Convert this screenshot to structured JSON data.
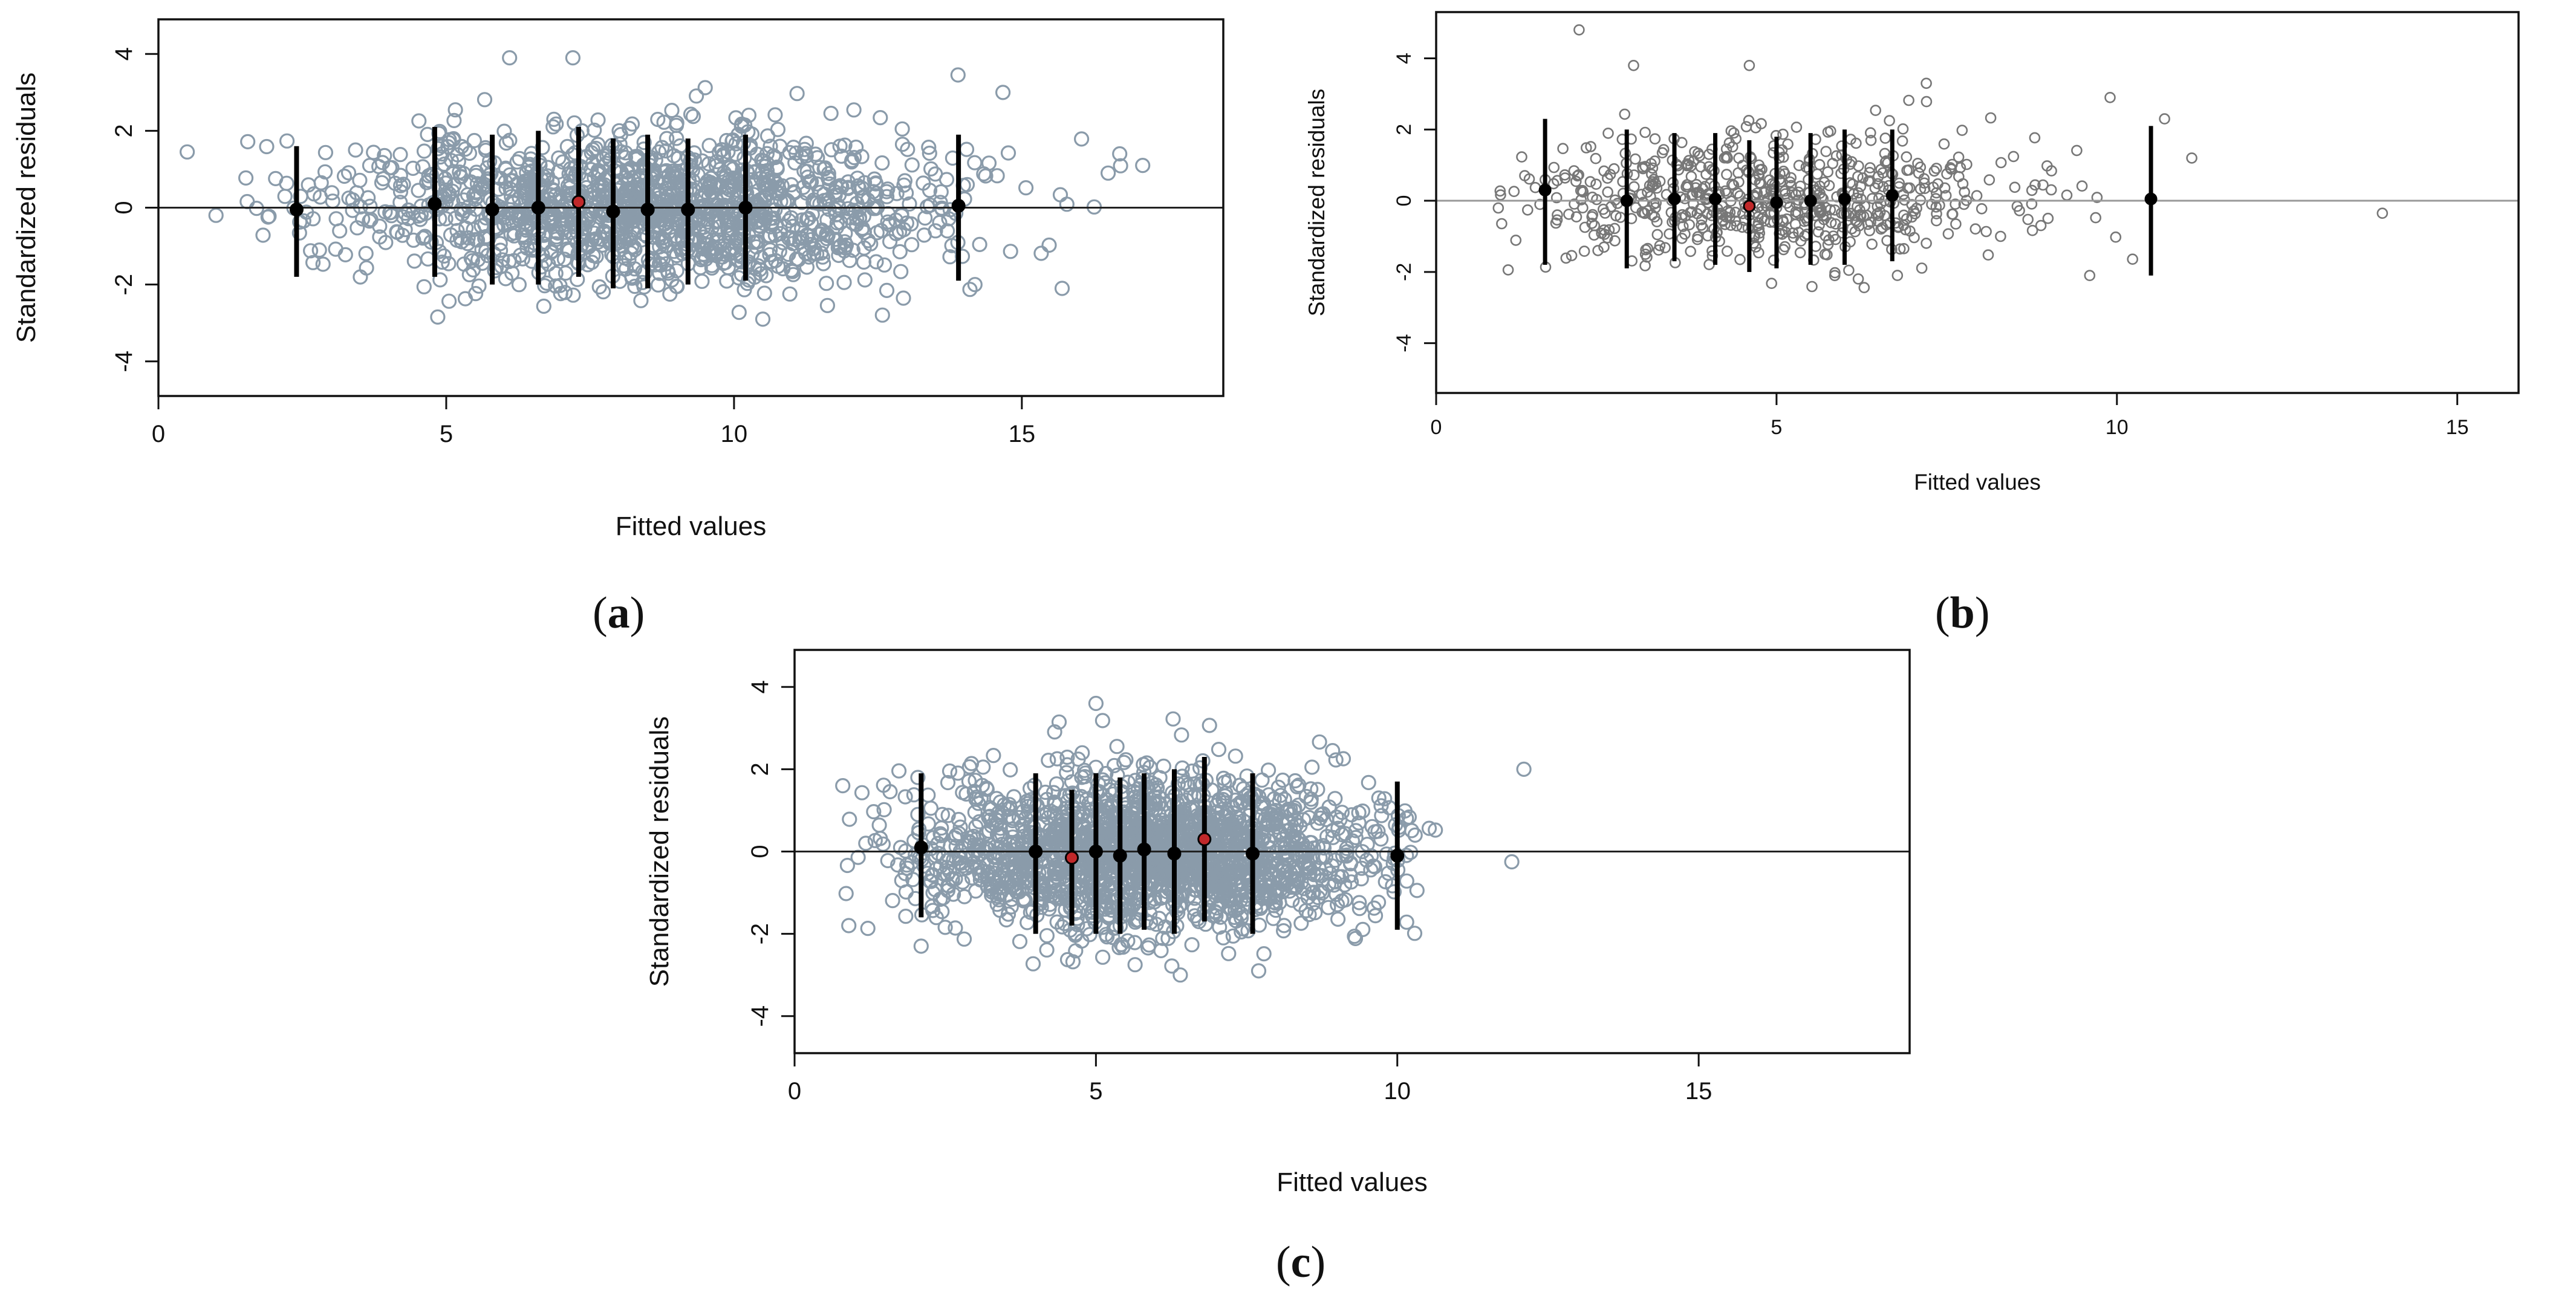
{
  "chart_data": [
    {
      "type": "scatter",
      "panel": "a",
      "caption": "(a)",
      "caption_letter": "a",
      "xlabel": "Fitted values",
      "ylabel": "Standardized residuals",
      "xlim": [
        0,
        18.5
      ],
      "ylim": [
        -4.9,
        4.9
      ],
      "xticks": [
        0,
        5,
        10,
        15
      ],
      "yticks": [
        -4,
        -2,
        0,
        2,
        4
      ],
      "reference_line_y": 0,
      "point_color": "#8a9baa",
      "point_style": "open-circle",
      "points": {
        "approx_count": 1500,
        "x_center": 8.5,
        "x_sd": 2.6,
        "x_range": [
          0.5,
          17.0
        ],
        "y_sd": 1.0,
        "y_range": [
          -2.9,
          3.9
        ]
      },
      "outliers": [
        {
          "x": 0.5,
          "y": 1.45
        },
        {
          "x": 1.0,
          "y": -0.2
        },
        {
          "x": 6.1,
          "y": 3.9
        },
        {
          "x": 7.2,
          "y": 3.9
        },
        {
          "x": 10.5,
          "y": -2.9
        },
        {
          "x": 15.7,
          "y": -2.1
        },
        {
          "x": 16.5,
          "y": 0.9
        },
        {
          "x": 16.7,
          "y": 1.4
        },
        {
          "x": 17.1,
          "y": 1.1
        }
      ],
      "bin_summary": [
        {
          "x": 2.4,
          "mean": -0.05,
          "lower": -1.8,
          "upper": 1.6,
          "highlight": false
        },
        {
          "x": 4.8,
          "mean": 0.1,
          "lower": -1.8,
          "upper": 2.1,
          "highlight": false
        },
        {
          "x": 5.8,
          "mean": -0.05,
          "lower": -2.0,
          "upper": 1.9,
          "highlight": false
        },
        {
          "x": 6.6,
          "mean": 0.0,
          "lower": -2.0,
          "upper": 2.0,
          "highlight": false
        },
        {
          "x": 7.3,
          "mean": 0.15,
          "lower": -1.8,
          "upper": 2.1,
          "highlight": true
        },
        {
          "x": 7.9,
          "mean": -0.1,
          "lower": -2.1,
          "upper": 1.8,
          "highlight": false
        },
        {
          "x": 8.5,
          "mean": -0.05,
          "lower": -2.1,
          "upper": 1.9,
          "highlight": false
        },
        {
          "x": 9.2,
          "mean": -0.05,
          "lower": -2.0,
          "upper": 1.8,
          "highlight": false
        },
        {
          "x": 10.2,
          "mean": 0.0,
          "lower": -1.9,
          "upper": 1.9,
          "highlight": false
        },
        {
          "x": 13.9,
          "mean": 0.05,
          "lower": -1.9,
          "upper": 1.9,
          "highlight": false
        }
      ],
      "seed": 11
    },
    {
      "type": "scatter",
      "panel": "b",
      "caption": "(b)",
      "caption_letter": "b",
      "xlabel": "Fitted values",
      "ylabel": "Standardized residuals",
      "xlim": [
        0,
        15.9
      ],
      "ylim": [
        -5.4,
        5.3
      ],
      "xticks": [
        0,
        5,
        10,
        15
      ],
      "yticks": [
        -4,
        -2,
        0,
        2,
        4
      ],
      "reference_line_y": 0,
      "point_color": "#777777",
      "point_style": "open-circle",
      "points": {
        "approx_count": 650,
        "x_center": 4.8,
        "x_sd": 1.9,
        "x_range": [
          0.8,
          11.0
        ],
        "y_sd": 0.85,
        "y_range": [
          -2.6,
          3.8
        ]
      },
      "outliers": [
        {
          "x": 2.1,
          "y": 4.8
        },
        {
          "x": 2.9,
          "y": 3.8
        },
        {
          "x": 4.6,
          "y": 3.8
        },
        {
          "x": 7.2,
          "y": 3.3
        },
        {
          "x": 9.9,
          "y": 2.9
        },
        {
          "x": 10.7,
          "y": 2.3
        },
        {
          "x": 11.1,
          "y": 1.2
        },
        {
          "x": 13.9,
          "y": -0.35
        },
        {
          "x": 9.6,
          "y": -2.1
        }
      ],
      "bin_summary": [
        {
          "x": 1.6,
          "mean": 0.3,
          "lower": -1.8,
          "upper": 2.3,
          "highlight": false
        },
        {
          "x": 2.8,
          "mean": 0.0,
          "lower": -1.9,
          "upper": 2.0,
          "highlight": false
        },
        {
          "x": 3.5,
          "mean": 0.05,
          "lower": -1.7,
          "upper": 1.9,
          "highlight": false
        },
        {
          "x": 4.1,
          "mean": 0.05,
          "lower": -1.8,
          "upper": 1.9,
          "highlight": false
        },
        {
          "x": 4.6,
          "mean": -0.15,
          "lower": -2.0,
          "upper": 1.7,
          "highlight": true
        },
        {
          "x": 5.0,
          "mean": -0.05,
          "lower": -1.9,
          "upper": 1.8,
          "highlight": false
        },
        {
          "x": 5.5,
          "mean": 0.0,
          "lower": -1.8,
          "upper": 1.9,
          "highlight": false
        },
        {
          "x": 6.0,
          "mean": 0.05,
          "lower": -1.8,
          "upper": 2.0,
          "highlight": false
        },
        {
          "x": 6.7,
          "mean": 0.15,
          "lower": -1.7,
          "upper": 2.0,
          "highlight": false
        },
        {
          "x": 10.5,
          "mean": 0.05,
          "lower": -2.1,
          "upper": 2.1,
          "highlight": false
        }
      ],
      "seed": 23
    },
    {
      "type": "scatter",
      "panel": "c",
      "caption": "(c)",
      "caption_letter": "c",
      "xlabel": "Fitted values",
      "ylabel": "Standardized residuals",
      "xlim": [
        0,
        18.5
      ],
      "ylim": [
        -4.9,
        4.9
      ],
      "xticks": [
        0,
        5,
        10,
        15
      ],
      "yticks": [
        -4,
        -2,
        0,
        2,
        4
      ],
      "reference_line_y": 0,
      "point_color": "#8a9baa",
      "point_style": "open-circle",
      "points": {
        "approx_count": 2000,
        "x_center": 5.8,
        "x_sd": 1.9,
        "x_range": [
          0.8,
          10.7
        ],
        "y_sd": 0.95,
        "y_range": [
          -3.0,
          3.6
        ]
      },
      "outliers": [
        {
          "x": 11.9,
          "y": -0.25
        },
        {
          "x": 12.1,
          "y": 2.0
        },
        {
          "x": 5.0,
          "y": 3.6
        },
        {
          "x": 6.4,
          "y": -3.0
        },
        {
          "x": 7.7,
          "y": -2.9
        },
        {
          "x": 2.1,
          "y": -2.3
        },
        {
          "x": 0.8,
          "y": 1.6
        },
        {
          "x": 0.9,
          "y": -1.8
        }
      ],
      "bin_summary": [
        {
          "x": 2.1,
          "mean": 0.1,
          "lower": -1.6,
          "upper": 1.9,
          "highlight": false
        },
        {
          "x": 4.0,
          "mean": 0.0,
          "lower": -2.0,
          "upper": 1.9,
          "highlight": false
        },
        {
          "x": 4.6,
          "mean": -0.15,
          "lower": -1.8,
          "upper": 1.5,
          "highlight": true
        },
        {
          "x": 5.0,
          "mean": 0.0,
          "lower": -2.0,
          "upper": 1.9,
          "highlight": false
        },
        {
          "x": 5.4,
          "mean": -0.1,
          "lower": -2.0,
          "upper": 1.8,
          "highlight": false
        },
        {
          "x": 5.8,
          "mean": 0.05,
          "lower": -1.9,
          "upper": 1.9,
          "highlight": false
        },
        {
          "x": 6.3,
          "mean": -0.05,
          "lower": -2.0,
          "upper": 2.0,
          "highlight": false
        },
        {
          "x": 6.8,
          "mean": 0.3,
          "lower": -1.7,
          "upper": 2.3,
          "highlight": true
        },
        {
          "x": 7.6,
          "mean": -0.05,
          "lower": -2.0,
          "upper": 1.9,
          "highlight": false
        },
        {
          "x": 10.0,
          "mean": -0.1,
          "lower": -1.9,
          "upper": 1.7,
          "highlight": false
        }
      ],
      "seed": 37
    }
  ],
  "colors": {
    "axis": "#111111",
    "bin_mark": "#000000",
    "highlight_mark": "#c0282a",
    "reference_line": "#222222",
    "reference_line_b": "#999999"
  }
}
